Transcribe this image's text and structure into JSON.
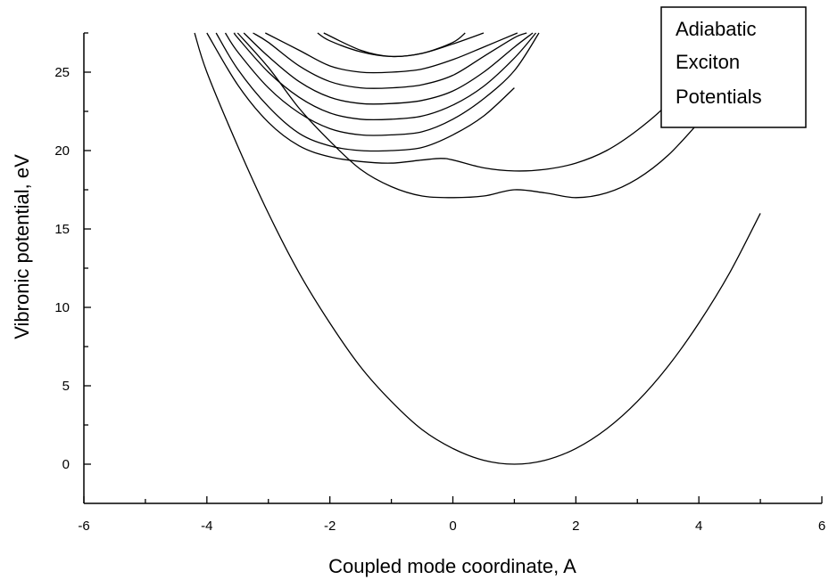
{
  "chart_data": {
    "type": "line",
    "title": "",
    "xlabel": "Coupled mode coordinate, A",
    "ylabel": "Vibronic potential, eV",
    "xlim": [
      -6,
      6
    ],
    "ylim": [
      -2.5,
      27.5
    ],
    "xticks": [
      -6,
      -4,
      -2,
      0,
      2,
      4,
      6
    ],
    "yticks": [
      0,
      5,
      10,
      15,
      20,
      25
    ],
    "annotation": {
      "lines": [
        "Adiabatic",
        "Exciton",
        "Potentials"
      ],
      "position": "top-right"
    },
    "series": [
      {
        "x": [
          -4.2,
          -4,
          -3.5,
          -3,
          -2.5,
          -2,
          -1.5,
          -1,
          -0.5,
          0,
          0.5,
          1,
          1.5,
          2,
          2.5,
          3,
          3.5,
          4,
          4.5,
          5
        ],
        "y": [
          27.5,
          25,
          20.3,
          16,
          12.2,
          9,
          6.2,
          4,
          2.2,
          1,
          0.25,
          0,
          0.25,
          1,
          2.25,
          4,
          6.25,
          9,
          12.2,
          16
        ]
      },
      {
        "x": [
          -3.5,
          -3,
          -2.5,
          -2,
          -1.5,
          -1,
          -0.5,
          0,
          0.5,
          1,
          1.5,
          2,
          2.5,
          3,
          3.5,
          4
        ],
        "y": [
          27.5,
          25.3,
          22.7,
          20.6,
          18.8,
          17.7,
          17.1,
          17,
          17.1,
          17.5,
          17.3,
          17,
          17.3,
          18.2,
          19.7,
          21.8
        ]
      },
      {
        "x": [
          -4,
          -3.5,
          -3,
          -2.5,
          -2,
          -1.5,
          -1,
          -0.5,
          -0.2,
          0,
          0.5,
          1,
          1.5,
          2,
          2.5,
          3,
          3.5,
          4.05
        ],
        "y": [
          27.5,
          24.2,
          21.8,
          20.3,
          19.6,
          19.3,
          19.2,
          19.4,
          19.5,
          19.4,
          18.9,
          18.7,
          18.8,
          19.2,
          20,
          21.3,
          23,
          25.5
        ]
      },
      {
        "x": [
          -3.85,
          -3.5,
          -3,
          -2.5,
          -2,
          -1.5,
          -1,
          -0.5,
          0,
          0.5,
          1
        ],
        "y": [
          27.5,
          25.2,
          22.8,
          21.1,
          20.3,
          20,
          20,
          20.2,
          21,
          22.2,
          24
        ]
      },
      {
        "x": [
          -3.7,
          -3.5,
          -3,
          -2.5,
          -2,
          -1.5,
          -1,
          -0.5,
          0,
          0.5,
          1,
          1.4
        ],
        "y": [
          27.5,
          26.3,
          24,
          22.4,
          21.4,
          21,
          21,
          21.2,
          22,
          23.3,
          25.1,
          27.5
        ]
      },
      {
        "x": [
          -3.55,
          -3.5,
          -3,
          -2.5,
          -2,
          -1.5,
          -1,
          -0.5,
          0,
          0.5,
          1,
          1.35
        ],
        "y": [
          27.5,
          27.2,
          25,
          23.4,
          22.4,
          22,
          22,
          22.2,
          22.9,
          24.1,
          25.9,
          27.5
        ]
      },
      {
        "x": [
          -3.4,
          -3,
          -2.5,
          -2,
          -1.5,
          -1,
          -0.5,
          0,
          0.5,
          1,
          1.3
        ],
        "y": [
          27.5,
          26,
          24.4,
          23.4,
          23,
          23,
          23.2,
          23.8,
          25,
          26.6,
          27.5
        ]
      },
      {
        "x": [
          -3.25,
          -3,
          -2.5,
          -2,
          -1.5,
          -1,
          -0.5,
          0,
          0.5,
          1,
          1.2
        ],
        "y": [
          27.5,
          26.9,
          25.4,
          24.4,
          24,
          24,
          24.2,
          24.8,
          26,
          27.2,
          27.5
        ]
      },
      {
        "x": [
          -3.05,
          -2.5,
          -2,
          -1.5,
          -1,
          -0.5,
          0,
          0.5,
          1.05
        ],
        "y": [
          27.5,
          26.4,
          25.4,
          25,
          25,
          25.2,
          25.8,
          26.6,
          27.5
        ]
      },
      {
        "x": [
          -2.2,
          -2,
          -1.5,
          -1,
          -0.5,
          0,
          0.2
        ],
        "y": [
          27.5,
          27,
          26.3,
          26,
          26.2,
          26.9,
          27.5
        ]
      },
      {
        "x": [
          -2.1,
          -1.5,
          -1,
          -0.5,
          0,
          0.5
        ],
        "y": [
          27.5,
          26.4,
          26,
          26.2,
          26.8,
          27.5
        ]
      }
    ]
  }
}
